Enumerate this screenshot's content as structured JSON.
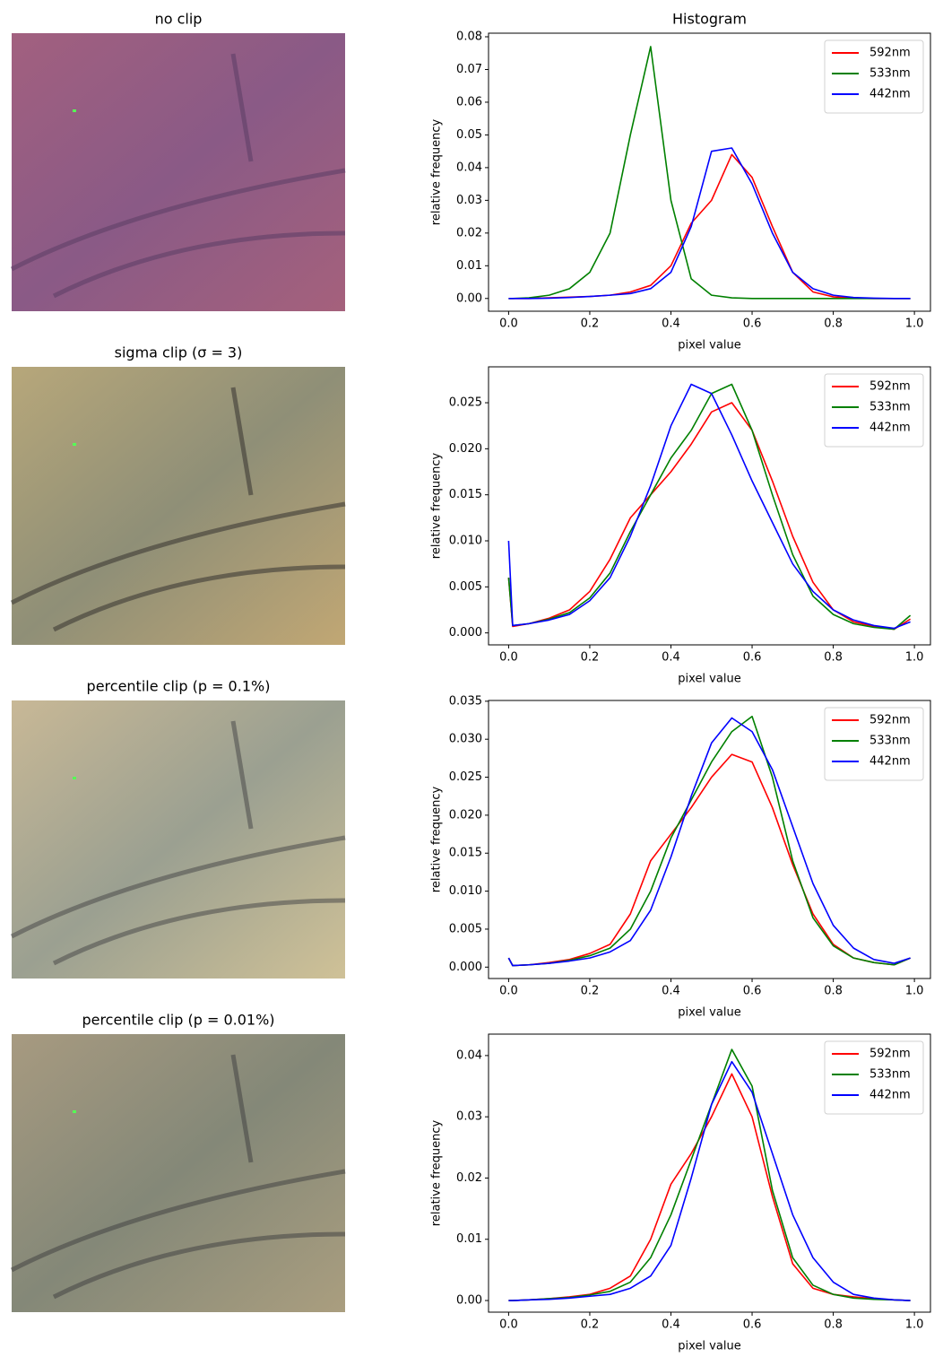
{
  "images": [
    {
      "title": "no clip"
    },
    {
      "title": "sigma clip (σ = 3)"
    },
    {
      "title": "percentile clip (p = 0.1%)"
    },
    {
      "title": "percentile clip (p = 0.01%)"
    }
  ],
  "chart_data": [
    {
      "type": "line",
      "title": "Histogram",
      "xlabel": "pixel value",
      "ylabel": "relative frequency",
      "legend": "upper right",
      "x": [
        0,
        0.01,
        0.05,
        0.1,
        0.15,
        0.2,
        0.25,
        0.3,
        0.35,
        0.4,
        0.45,
        0.5,
        0.55,
        0.6,
        0.65,
        0.7,
        0.75,
        0.8,
        0.85,
        0.9,
        0.95,
        0.99
      ],
      "series": [
        {
          "name": "592nm",
          "color": "#ff0000",
          "values": [
            0,
            0,
            0,
            0.0002,
            0.0004,
            0.0006,
            0.001,
            0.002,
            0.004,
            0.01,
            0.023,
            0.03,
            0.044,
            0.037,
            0.022,
            0.008,
            0.002,
            0.0005,
            0.0001,
            0,
            0,
            0
          ]
        },
        {
          "name": "533nm",
          "color": "#008000",
          "values": [
            0,
            0,
            0.0002,
            0.001,
            0.003,
            0.008,
            0.02,
            0.05,
            0.077,
            0.03,
            0.006,
            0.001,
            0.0002,
            0,
            0,
            0,
            0,
            0,
            0,
            0,
            0,
            0
          ]
        },
        {
          "name": "442nm",
          "color": "#0000ff",
          "values": [
            0,
            0,
            0,
            0.0001,
            0.0003,
            0.0006,
            0.001,
            0.0015,
            0.003,
            0.008,
            0.022,
            0.045,
            0.046,
            0.035,
            0.02,
            0.008,
            0.003,
            0.001,
            0.0003,
            0.0001,
            0,
            0
          ]
        }
      ],
      "xlim": [
        -0.0495,
        1.0395
      ],
      "ylim": [
        -0.0039,
        0.0811
      ],
      "xticks": [
        {
          "value": 0,
          "label": "0.0"
        },
        0.2,
        0.4,
        0.6,
        0.8,
        {
          "value": 1,
          "label": "1.0"
        }
      ],
      "yticks": [
        {
          "value": 0,
          "label": "0.00"
        },
        0.01,
        0.02,
        0.03,
        0.04,
        0.05,
        0.06,
        0.07,
        0.08
      ]
    },
    {
      "type": "line",
      "xlabel": "pixel value",
      "ylabel": "relative frequency",
      "legend": "upper right",
      "x": [
        0,
        0.01,
        0.05,
        0.1,
        0.15,
        0.2,
        0.25,
        0.3,
        0.35,
        0.4,
        0.45,
        0.5,
        0.55,
        0.6,
        0.65,
        0.7,
        0.75,
        0.8,
        0.85,
        0.9,
        0.95,
        0.99
      ],
      "series": [
        {
          "name": "592nm",
          "color": "#ff0000",
          "values": [
            0.006,
            0.0007,
            0.001,
            0.0016,
            0.0025,
            0.0045,
            0.008,
            0.0125,
            0.015,
            0.0175,
            0.0205,
            0.024,
            0.025,
            0.022,
            0.0165,
            0.0105,
            0.0055,
            0.0025,
            0.0012,
            0.0007,
            0.0004,
            0.0015
          ]
        },
        {
          "name": "533nm",
          "color": "#008000",
          "values": [
            0.006,
            0.0008,
            0.001,
            0.0015,
            0.0022,
            0.0038,
            0.0065,
            0.011,
            0.015,
            0.019,
            0.022,
            0.026,
            0.027,
            0.022,
            0.015,
            0.0085,
            0.004,
            0.002,
            0.001,
            0.0006,
            0.0004,
            0.0019
          ]
        },
        {
          "name": "442nm",
          "color": "#0000ff",
          "values": [
            0.01,
            0.0008,
            0.001,
            0.0014,
            0.002,
            0.0035,
            0.006,
            0.0105,
            0.016,
            0.0225,
            0.027,
            0.026,
            0.0215,
            0.0165,
            0.012,
            0.0075,
            0.0045,
            0.0025,
            0.0014,
            0.0008,
            0.0005,
            0.0012
          ]
        }
      ],
      "xlim": [
        -0.0495,
        1.0395
      ],
      "ylim": [
        -0.0013,
        0.0289
      ],
      "xticks": [
        {
          "value": 0,
          "label": "0.0"
        },
        0.2,
        0.4,
        0.6,
        0.8,
        {
          "value": 1,
          "label": "1.0"
        }
      ],
      "yticks": [
        {
          "value": 0,
          "label": "0.000"
        },
        0.005,
        {
          "value": 0.01,
          "label": "0.010"
        },
        0.015,
        {
          "value": 0.02,
          "label": "0.020"
        },
        0.025
      ]
    },
    {
      "type": "line",
      "xlabel": "pixel value",
      "ylabel": "relative frequency",
      "legend": "upper right",
      "x": [
        0,
        0.01,
        0.05,
        0.1,
        0.15,
        0.2,
        0.25,
        0.3,
        0.35,
        0.4,
        0.45,
        0.5,
        0.55,
        0.6,
        0.65,
        0.7,
        0.75,
        0.8,
        0.85,
        0.9,
        0.95,
        0.99
      ],
      "series": [
        {
          "name": "592nm",
          "color": "#ff0000",
          "values": [
            0.0012,
            0.0002,
            0.0003,
            0.0006,
            0.001,
            0.0018,
            0.003,
            0.007,
            0.014,
            0.0175,
            0.021,
            0.025,
            0.028,
            0.027,
            0.021,
            0.0135,
            0.007,
            0.003,
            0.0012,
            0.0006,
            0.0003,
            0.0012
          ]
        },
        {
          "name": "533nm",
          "color": "#008000",
          "values": [
            0.0012,
            0.0002,
            0.0003,
            0.0005,
            0.0009,
            0.0015,
            0.0025,
            0.005,
            0.01,
            0.017,
            0.022,
            0.027,
            0.031,
            0.033,
            0.025,
            0.014,
            0.0065,
            0.0028,
            0.0012,
            0.0006,
            0.0003,
            0.0012
          ]
        },
        {
          "name": "442nm",
          "color": "#0000ff",
          "values": [
            0.0012,
            0.0002,
            0.0003,
            0.0005,
            0.0008,
            0.0012,
            0.002,
            0.0035,
            0.0075,
            0.0145,
            0.0225,
            0.0295,
            0.0328,
            0.031,
            0.026,
            0.0185,
            0.011,
            0.0055,
            0.0025,
            0.001,
            0.0005,
            0.0012
          ]
        }
      ],
      "xlim": [
        -0.0495,
        1.0395
      ],
      "ylim": [
        -0.0015,
        0.0351
      ],
      "xticks": [
        {
          "value": 0,
          "label": "0.0"
        },
        0.2,
        0.4,
        0.6,
        0.8,
        {
          "value": 1,
          "label": "1.0"
        }
      ],
      "yticks": [
        {
          "value": 0,
          "label": "0.000"
        },
        0.005,
        {
          "value": 0.01,
          "label": "0.010"
        },
        0.015,
        {
          "value": 0.02,
          "label": "0.020"
        },
        0.025,
        {
          "value": 0.03,
          "label": "0.030"
        },
        0.035
      ]
    },
    {
      "type": "line",
      "xlabel": "pixel value",
      "ylabel": "relative frequency",
      "legend": "upper right",
      "x": [
        0,
        0.01,
        0.05,
        0.1,
        0.15,
        0.2,
        0.25,
        0.3,
        0.35,
        0.4,
        0.45,
        0.5,
        0.55,
        0.6,
        0.65,
        0.7,
        0.75,
        0.8,
        0.85,
        0.9,
        0.95,
        0.99
      ],
      "series": [
        {
          "name": "592nm",
          "color": "#ff0000",
          "values": [
            0,
            0,
            0.0001,
            0.0003,
            0.0006,
            0.001,
            0.002,
            0.004,
            0.01,
            0.019,
            0.024,
            0.03,
            0.037,
            0.03,
            0.017,
            0.006,
            0.002,
            0.001,
            0.0006,
            0.0003,
            0.0001,
            0
          ]
        },
        {
          "name": "533nm",
          "color": "#008000",
          "values": [
            0,
            0,
            0.0001,
            0.0003,
            0.0005,
            0.0009,
            0.0015,
            0.003,
            0.007,
            0.014,
            0.023,
            0.032,
            0.041,
            0.035,
            0.018,
            0.007,
            0.0025,
            0.001,
            0.0004,
            0.0002,
            0.0001,
            0
          ]
        },
        {
          "name": "442nm",
          "color": "#0000ff",
          "values": [
            0,
            0,
            0.0001,
            0.0002,
            0.0004,
            0.0007,
            0.001,
            0.002,
            0.004,
            0.009,
            0.02,
            0.032,
            0.039,
            0.034,
            0.024,
            0.014,
            0.007,
            0.003,
            0.001,
            0.0004,
            0.0001,
            0
          ]
        }
      ],
      "xlim": [
        -0.0495,
        1.0395
      ],
      "ylim": [
        -0.0019,
        0.0435
      ],
      "xticks": [
        {
          "value": 0,
          "label": "0.0"
        },
        0.2,
        0.4,
        0.6,
        0.8,
        {
          "value": 1,
          "label": "1.0"
        }
      ],
      "yticks": [
        {
          "value": 0,
          "label": "0.00"
        },
        0.01,
        0.02,
        0.03,
        0.04
      ]
    }
  ]
}
